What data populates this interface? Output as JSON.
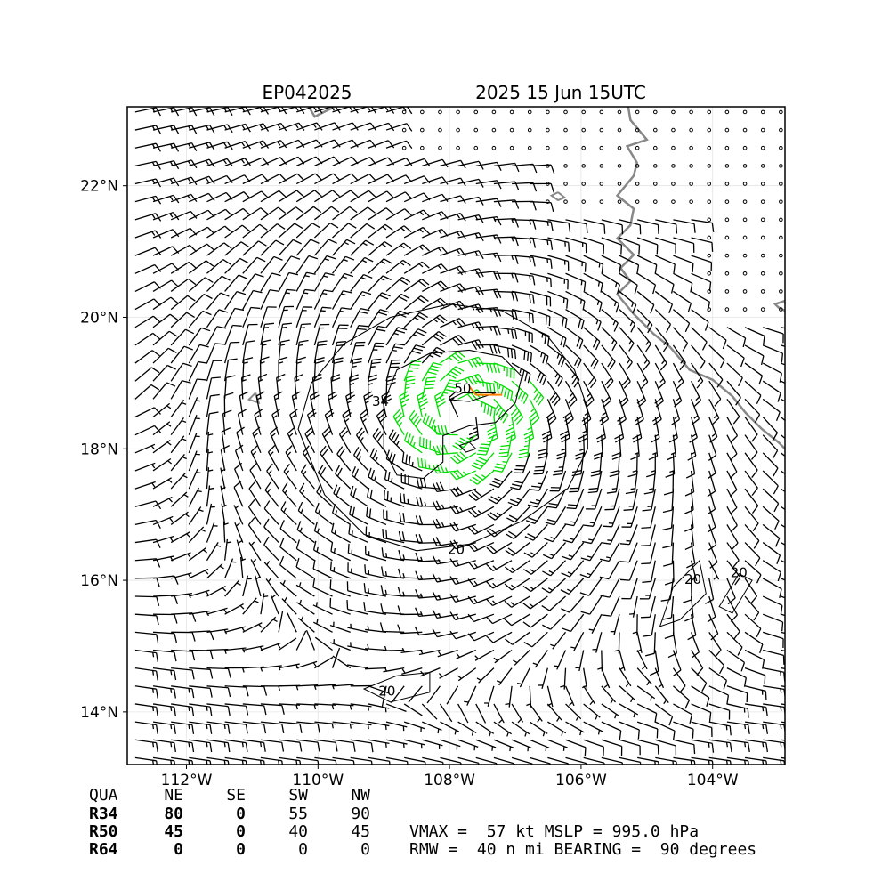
{
  "chart_data": {
    "type": "wind-barb-map",
    "storm_id": "EP042025",
    "valid_time": "2025 15 Jun 15UTC",
    "x_ticks": [
      "112°W",
      "110°W",
      "108°W",
      "106°W",
      "104°W"
    ],
    "y_ticks": [
      "22°N",
      "20°N",
      "18°N",
      "16°N",
      "14°N"
    ],
    "lon_range": [
      -112.9,
      -102.9
    ],
    "lat_range": [
      13.2,
      23.2
    ],
    "center": {
      "lon": -107.8,
      "lat": 18.5
    },
    "contour_labels": [
      {
        "text": "34",
        "lon": -109.05,
        "lat": 18.65
      },
      {
        "text": "50",
        "lon": -107.8,
        "lat": 18.85
      },
      {
        "text": "20",
        "lon": -107.9,
        "lat": 16.4
      },
      {
        "text": "20",
        "lon": -108.95,
        "lat": 14.25
      },
      {
        "text": "20",
        "lon": -104.3,
        "lat": 15.95
      },
      {
        "text": "20",
        "lon": -103.6,
        "lat": 16.05
      }
    ],
    "colors": {
      "calm": "#000000",
      "r34": "#00dd00",
      "r50": "#e8b020",
      "r64": "#ff7f00",
      "coast": "#888888"
    },
    "radii_table": {
      "header": [
        "QUA",
        "NE",
        "SE",
        "SW",
        "NW"
      ],
      "rows": [
        {
          "label": "R34",
          "values": [
            "80",
            "0",
            "55",
            "90"
          ]
        },
        {
          "label": "R50",
          "values": [
            "45",
            "0",
            "40",
            "45"
          ]
        },
        {
          "label": "R64",
          "values": [
            "0",
            "0",
            "0",
            "0"
          ]
        }
      ]
    },
    "info_line1": "VMAX =  57 kt MSLP = 995.0 hPa",
    "info_line2": "RMW =  40 n mi BEARING =  90 degrees"
  }
}
